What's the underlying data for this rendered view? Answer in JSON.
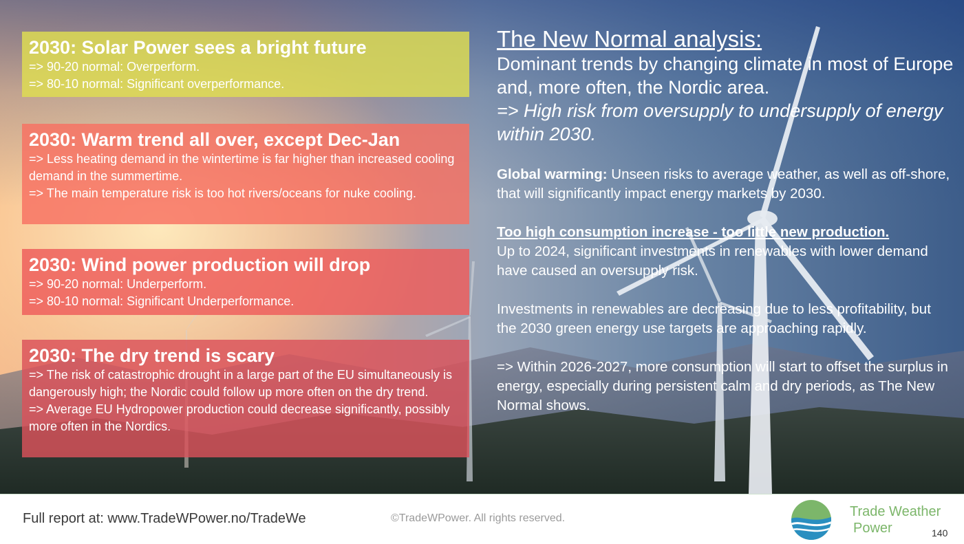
{
  "boxes": [
    {
      "title": "2030: Solar Power sees a bright future",
      "lines": [
        "=> 90-20 normal: Overperform.",
        "=> 80-10 normal: Significant overperformance."
      ]
    },
    {
      "title": "2030: Warm trend all over, except Dec-Jan",
      "lines": [
        "=> Less heating demand in the wintertime is far higher than increased cooling demand in the summertime.",
        "=> The main temperature risk is too hot rivers/oceans for nuke cooling."
      ]
    },
    {
      "title": "2030: Wind power production will drop",
      "lines": [
        "=> 90-20 normal: Underperform.",
        "=> 80-10 normal: Significant Underperformance."
      ]
    },
    {
      "title": "2030: The dry trend is scary",
      "lines": [
        "=> The risk of catastrophic drought in a large part of the EU simultaneously is dangerously high; the Nordic could follow up more often on the dry trend.",
        "=> Average EU Hydropower production could decrease significantly, possibly more often in the Nordics."
      ]
    }
  ],
  "analysis": {
    "title": "The New Normal analysis:",
    "lead": "Dominant trends by changing climate in most of Europe and, more often, the Nordic area.",
    "lead_emphasis": "=> High risk from oversupply to undersupply of energy within 2030.",
    "global_label": "Global warming:",
    "global_text": " Unseen risks to average weather, as well as off-shore, that will significantly impact energy markets by 2030.",
    "consumption_heading": "Too high consumption increase - too little new production.",
    "consumption_text": "Up to 2024, significant investments in renewables with lower demand have caused an oversupply risk.",
    "investments_text": "Investments in renewables are decreasing due to less profitability, but the 2030 green energy use targets are approaching rapidly.",
    "within_text": "=> Within 2026-2027, more consumption will start to offset the surplus in energy, especially during persistent calm and dry periods, as The New Normal shows."
  },
  "footer": {
    "report": "Full report at: www.TradeWPower.no/TradeWe",
    "copyright": "©TradeWPower. All rights reserved.",
    "brand_line1": "Trade Weather",
    "brand_line2": "Power",
    "page_number": "140"
  },
  "colors": {
    "solar_box": "#dfde50",
    "warm_box": "#f87062",
    "wind_box": "#ee5c5a",
    "dry_box": "#da525a",
    "brand_green": "#7cb66a",
    "logo_blue": "#2a8fc0"
  },
  "icons": {
    "logo": "trade-weather-power-logo-icon"
  }
}
